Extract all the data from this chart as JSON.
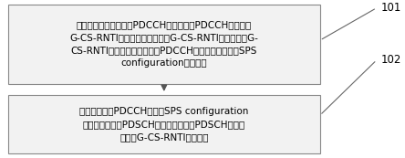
{
  "box1_text": "接收网络侧发送的第一PDCCH，所述第一PDCCH采用第一\nG-CS-RNTI进行加扰，所述第一G-CS-RNTI是所述多个G-\nCS-RNTI中的一个，所述第一PDCCH用于激活所述多个SPS\nconfiguration中的一个",
  "box2_text": "利用所述第一PDCCH激活的SPS configuration\n的资源进行第一PDSCH传输；所述第一PDSCH使用所\n述第一G-CS-RNTI进行加扰",
  "label1": "101",
  "label2": "102",
  "box_bg": "#f2f2f2",
  "box_edge": "#888888",
  "text_color": "#000000",
  "label_color": "#000000",
  "arrow_color": "#555555",
  "bg_color": "#ffffff",
  "fontsize": 7.5,
  "label_fontsize": 8.5
}
